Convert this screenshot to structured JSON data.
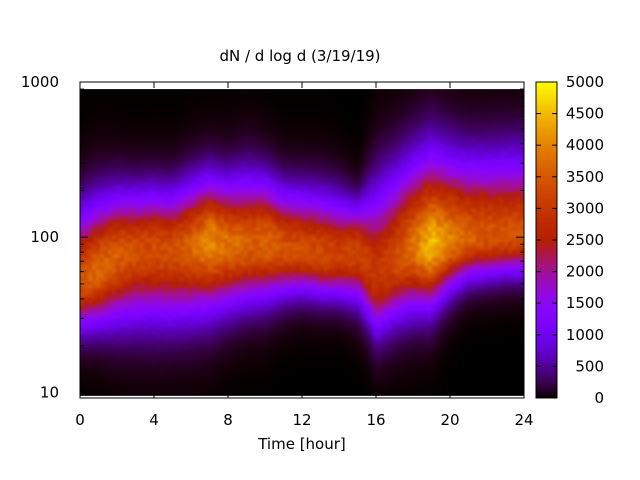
{
  "chart_data": {
    "type": "heatmap",
    "title": "dN / d log d (3/19/19)",
    "xlabel": "Time [hour]",
    "ylabel": "",
    "x_range": [
      0,
      24
    ],
    "x_ticks": [
      0,
      4,
      8,
      12,
      16,
      20,
      24
    ],
    "y_range": [
      9.2,
      1000
    ],
    "y_scale": "log",
    "y_ticks": [
      10,
      100,
      1000
    ],
    "colorbar": {
      "range": [
        0,
        5000
      ],
      "ticks": [
        0,
        500,
        1000,
        1500,
        2000,
        2500,
        3000,
        3500,
        4000,
        4500,
        5000
      ],
      "palette": "gnuplot-rgbformulae-7-5-15",
      "colors": [
        "#000000",
        "#6a00ff",
        "#c2188a",
        "#e85a00",
        "#ffb000",
        "#ffff30"
      ]
    },
    "data_extent": {
      "x": [
        0,
        24
      ],
      "y": [
        9.5,
        900
      ]
    },
    "grid": false,
    "features": {
      "peak_diameter": [
        [
          0,
          52
        ],
        [
          1,
          60
        ],
        [
          2,
          75
        ],
        [
          3,
          82
        ],
        [
          4,
          85
        ],
        [
          5,
          82
        ],
        [
          6,
          88
        ],
        [
          7,
          95
        ],
        [
          8,
          90
        ],
        [
          9,
          88
        ],
        [
          10,
          92
        ],
        [
          11,
          85
        ],
        [
          12,
          82
        ],
        [
          13,
          78
        ],
        [
          14,
          75
        ],
        [
          15,
          80
        ],
        [
          16,
          55
        ],
        [
          17,
          70
        ],
        [
          18,
          85
        ],
        [
          19,
          88
        ],
        [
          20,
          95
        ],
        [
          21,
          98
        ],
        [
          22,
          100
        ],
        [
          23,
          102
        ],
        [
          24,
          102
        ]
      ],
      "peak_concentration": [
        [
          0,
          3500
        ],
        [
          1,
          3700
        ],
        [
          2,
          3550
        ],
        [
          3,
          3350
        ],
        [
          4,
          3300
        ],
        [
          5,
          3350
        ],
        [
          6,
          3600
        ],
        [
          7,
          4100
        ],
        [
          8,
          3800
        ],
        [
          9,
          3550
        ],
        [
          10,
          3700
        ],
        [
          11,
          3450
        ],
        [
          12,
          3350
        ],
        [
          13,
          3300
        ],
        [
          14,
          3150
        ],
        [
          15,
          3250
        ],
        [
          16,
          3000
        ],
        [
          17,
          3250
        ],
        [
          18,
          3800
        ],
        [
          19,
          4500
        ],
        [
          20,
          4000
        ],
        [
          21,
          3600
        ],
        [
          22,
          3450
        ],
        [
          23,
          3400
        ],
        [
          24,
          3400
        ]
      ],
      "upper_edge_diameter": [
        [
          0,
          120
        ],
        [
          1,
          140
        ],
        [
          2,
          160
        ],
        [
          3,
          165
        ],
        [
          4,
          170
        ],
        [
          5,
          165
        ],
        [
          6,
          185
        ],
        [
          7,
          200
        ],
        [
          8,
          190
        ],
        [
          9,
          200
        ],
        [
          10,
          195
        ],
        [
          11,
          170
        ],
        [
          12,
          165
        ],
        [
          13,
          160
        ],
        [
          14,
          150
        ],
        [
          15,
          140
        ],
        [
          16,
          160
        ],
        [
          17,
          200
        ],
        [
          18,
          240
        ],
        [
          19,
          260
        ],
        [
          20,
          255
        ],
        [
          21,
          250
        ],
        [
          22,
          255
        ],
        [
          23,
          260
        ],
        [
          24,
          260
        ]
      ],
      "lower_edge_diameter": [
        [
          0,
          28
        ],
        [
          1,
          30
        ],
        [
          2,
          32
        ],
        [
          3,
          33
        ],
        [
          4,
          33
        ],
        [
          5,
          33
        ],
        [
          6,
          35
        ],
        [
          7,
          38
        ],
        [
          8,
          40
        ],
        [
          9,
          42
        ],
        [
          10,
          44
        ],
        [
          11,
          46
        ],
        [
          12,
          47
        ],
        [
          13,
          45
        ],
        [
          14,
          44
        ],
        [
          15,
          42
        ],
        [
          16,
          26
        ],
        [
          17,
          32
        ],
        [
          18,
          38
        ],
        [
          19,
          40
        ],
        [
          20,
          50
        ],
        [
          21,
          58
        ],
        [
          22,
          60
        ],
        [
          23,
          62
        ],
        [
          24,
          62
        ]
      ]
    }
  }
}
